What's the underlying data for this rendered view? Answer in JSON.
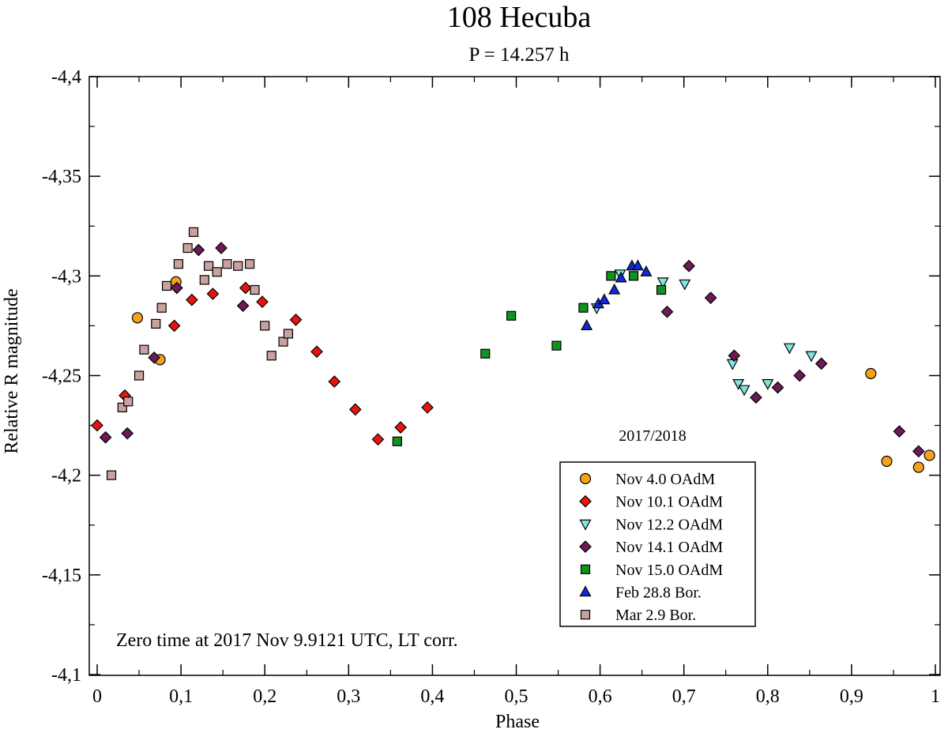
{
  "chart_data": {
    "type": "scatter",
    "title": "108 Hecuba",
    "subtitle": "P = 14.257 h",
    "xlabel": "Phase",
    "ylabel": "Relative R magnitude",
    "xlim": [
      0,
      1
    ],
    "ylim": [
      -4.4,
      -4.1
    ],
    "y_inverted": true,
    "x_ticks": [
      "0",
      "0,1",
      "0,2",
      "0,3",
      "0,4",
      "0,5",
      "0,6",
      "0,7",
      "0,8",
      "0,9",
      "1"
    ],
    "y_ticks": [
      "-4,4",
      "-4,35",
      "-4,3",
      "-4,25",
      "-4,2",
      "-4,15",
      "-4,1"
    ],
    "grid": false,
    "legend_title": "2017/2018",
    "legend_position": "bottom-right",
    "annotation": "Zero time at 2017 Nov 9.9121 UTC, LT corr.",
    "series": [
      {
        "name": "Nov 4.0 OAdM",
        "marker": "circle",
        "color": "#f5a21b",
        "points": [
          [
            0.048,
            -4.279
          ],
          [
            0.075,
            -4.258
          ],
          [
            0.094,
            -4.297
          ],
          [
            0.923,
            -4.251
          ],
          [
            0.942,
            -4.207
          ],
          [
            0.98,
            -4.204
          ],
          [
            0.993,
            -4.21
          ]
        ]
      },
      {
        "name": "Nov 10.1 OAdM",
        "marker": "diamond",
        "color": "#e8140f",
        "points": [
          [
            0.0,
            -4.225
          ],
          [
            0.033,
            -4.24
          ],
          [
            0.092,
            -4.275
          ],
          [
            0.113,
            -4.288
          ],
          [
            0.138,
            -4.291
          ],
          [
            0.177,
            -4.294
          ],
          [
            0.197,
            -4.287
          ],
          [
            0.237,
            -4.278
          ],
          [
            0.262,
            -4.262
          ],
          [
            0.283,
            -4.247
          ],
          [
            0.308,
            -4.233
          ],
          [
            0.335,
            -4.218
          ],
          [
            0.362,
            -4.224
          ],
          [
            0.394,
            -4.234
          ]
        ]
      },
      {
        "name": "Nov 12.2 OAdM",
        "marker": "triangle-down",
        "color": "#7fe6dc",
        "points": [
          [
            0.596,
            -4.284
          ],
          [
            0.624,
            -4.301
          ],
          [
            0.675,
            -4.297
          ],
          [
            0.701,
            -4.296
          ],
          [
            0.758,
            -4.256
          ],
          [
            0.765,
            -4.246
          ],
          [
            0.772,
            -4.243
          ],
          [
            0.8,
            -4.246
          ],
          [
            0.826,
            -4.264
          ],
          [
            0.852,
            -4.26
          ]
        ]
      },
      {
        "name": "Nov 14.1 OAdM",
        "marker": "diamond",
        "color": "#6e1a56",
        "points": [
          [
            0.01,
            -4.219
          ],
          [
            0.036,
            -4.221
          ],
          [
            0.068,
            -4.259
          ],
          [
            0.095,
            -4.294
          ],
          [
            0.121,
            -4.313
          ],
          [
            0.148,
            -4.314
          ],
          [
            0.174,
            -4.285
          ],
          [
            0.68,
            -4.282
          ],
          [
            0.706,
            -4.305
          ],
          [
            0.732,
            -4.289
          ],
          [
            0.76,
            -4.26
          ],
          [
            0.786,
            -4.239
          ],
          [
            0.812,
            -4.244
          ],
          [
            0.838,
            -4.25
          ],
          [
            0.864,
            -4.256
          ],
          [
            0.957,
            -4.222
          ],
          [
            0.98,
            -4.212
          ]
        ]
      },
      {
        "name": "Nov 15.0 OAdM",
        "marker": "square",
        "color": "#12911c",
        "points": [
          [
            0.358,
            -4.217
          ],
          [
            0.463,
            -4.261
          ],
          [
            0.494,
            -4.28
          ],
          [
            0.548,
            -4.265
          ],
          [
            0.58,
            -4.284
          ],
          [
            0.613,
            -4.3
          ],
          [
            0.64,
            -4.3
          ],
          [
            0.673,
            -4.293
          ]
        ]
      },
      {
        "name": "Feb 28.8 Bor.",
        "marker": "triangle-up",
        "color": "#1228d8",
        "points": [
          [
            0.584,
            -4.275
          ],
          [
            0.598,
            -4.286
          ],
          [
            0.605,
            -4.288
          ],
          [
            0.617,
            -4.293
          ],
          [
            0.625,
            -4.299
          ],
          [
            0.638,
            -4.305
          ],
          [
            0.645,
            -4.305
          ],
          [
            0.655,
            -4.302
          ]
        ]
      },
      {
        "name": "Mar 2.9 Bor.",
        "marker": "square",
        "color": "#c9a19e",
        "points": [
          [
            0.017,
            -4.2
          ],
          [
            0.03,
            -4.234
          ],
          [
            0.037,
            -4.237
          ],
          [
            0.05,
            -4.25
          ],
          [
            0.056,
            -4.263
          ],
          [
            0.07,
            -4.276
          ],
          [
            0.077,
            -4.284
          ],
          [
            0.083,
            -4.295
          ],
          [
            0.097,
            -4.306
          ],
          [
            0.108,
            -4.314
          ],
          [
            0.115,
            -4.322
          ],
          [
            0.128,
            -4.298
          ],
          [
            0.133,
            -4.305
          ],
          [
            0.143,
            -4.302
          ],
          [
            0.155,
            -4.306
          ],
          [
            0.168,
            -4.305
          ],
          [
            0.182,
            -4.306
          ],
          [
            0.188,
            -4.293
          ],
          [
            0.2,
            -4.275
          ],
          [
            0.208,
            -4.26
          ],
          [
            0.222,
            -4.267
          ],
          [
            0.228,
            -4.271
          ]
        ]
      }
    ]
  }
}
